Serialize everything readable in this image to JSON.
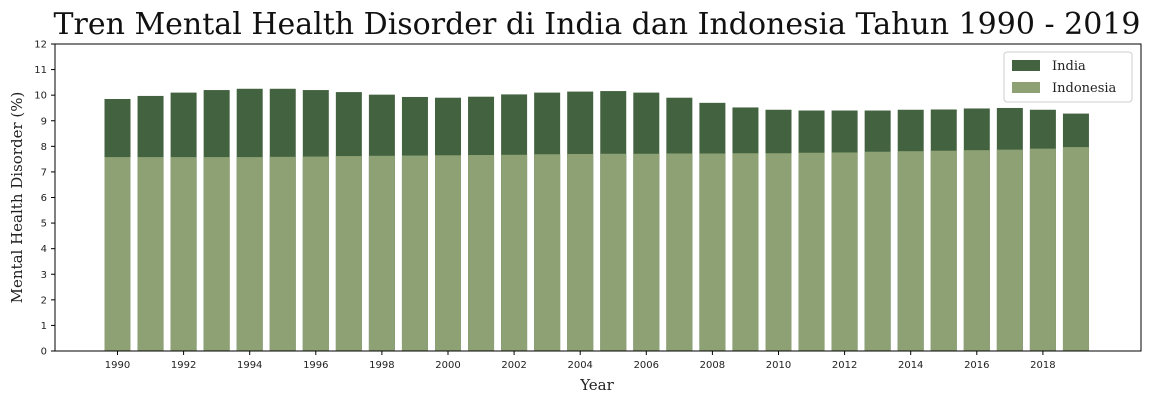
{
  "chart_data": {
    "type": "bar",
    "stacked": false,
    "overlapping": true,
    "title": "Tren Mental Health Disorder di India dan Indonesia Tahun 1990 - 2019",
    "xlabel": "Year",
    "ylabel": "Mental Health Disorder (%)",
    "ylim": [
      0,
      12
    ],
    "yticks": [
      0,
      1,
      2,
      3,
      4,
      5,
      6,
      7,
      8,
      9,
      10,
      11,
      12
    ],
    "xticks": [
      1990,
      1992,
      1994,
      1996,
      1998,
      2000,
      2002,
      2004,
      2006,
      2008,
      2010,
      2012,
      2014,
      2016,
      2018
    ],
    "x": [
      1990,
      1991,
      1992,
      1993,
      1994,
      1995,
      1996,
      1997,
      1998,
      1999,
      2000,
      2001,
      2002,
      2003,
      2004,
      2005,
      2006,
      2007,
      2008,
      2009,
      2010,
      2011,
      2012,
      2013,
      2014,
      2015,
      2016,
      2017,
      2018,
      2019
    ],
    "grid": false,
    "legend_position": "top-right",
    "series": [
      {
        "name": "India",
        "color": "#436240",
        "values": [
          9.85,
          9.97,
          10.1,
          10.2,
          10.25,
          10.25,
          10.2,
          10.12,
          10.02,
          9.93,
          9.9,
          9.94,
          10.03,
          10.1,
          10.14,
          10.16,
          10.1,
          9.9,
          9.7,
          9.52,
          9.43,
          9.4,
          9.4,
          9.4,
          9.43,
          9.44,
          9.48,
          9.5,
          9.43,
          9.28
        ]
      },
      {
        "name": "Indonesia",
        "color": "#8da174",
        "values": [
          7.58,
          7.58,
          7.58,
          7.58,
          7.58,
          7.59,
          7.6,
          7.62,
          7.63,
          7.64,
          7.65,
          7.66,
          7.67,
          7.69,
          7.7,
          7.71,
          7.71,
          7.72,
          7.72,
          7.73,
          7.73,
          7.75,
          7.76,
          7.79,
          7.81,
          7.83,
          7.85,
          7.87,
          7.91,
          7.97
        ]
      }
    ]
  }
}
